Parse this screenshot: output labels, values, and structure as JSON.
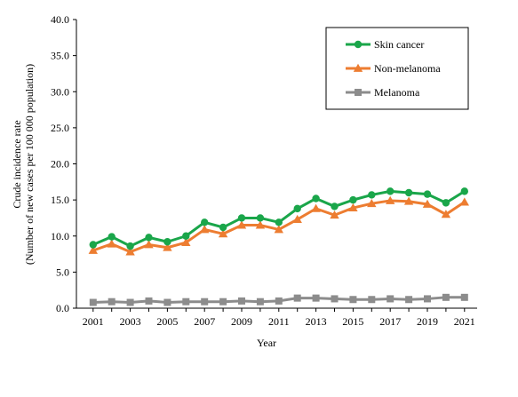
{
  "chart_data": {
    "type": "line",
    "title": "",
    "xlabel": "Year",
    "ylabel_lines": [
      "Crude incidence rate",
      "(Number of new cases per 100 000 population)"
    ],
    "ylim": [
      0,
      40
    ],
    "y_ticks": [
      "0.0",
      "5.0",
      "10.0",
      "15.0",
      "20.0",
      "25.0",
      "30.0",
      "35.0",
      "40.0"
    ],
    "x": [
      2001,
      2002,
      2003,
      2004,
      2005,
      2006,
      2007,
      2008,
      2009,
      2010,
      2011,
      2012,
      2013,
      2014,
      2015,
      2016,
      2017,
      2018,
      2019,
      2020,
      2021
    ],
    "x_tick_labels": [
      "2001",
      "2003",
      "2005",
      "2007",
      "2009",
      "2011",
      "2013",
      "2015",
      "2017",
      "2019",
      "2021"
    ],
    "grid": false,
    "legend_position": "top-right",
    "series": [
      {
        "name": "Skin cancer",
        "color": "#1aa64a",
        "marker": "circle",
        "values": [
          8.8,
          9.9,
          8.6,
          9.8,
          9.2,
          10.0,
          11.9,
          11.2,
          12.5,
          12.5,
          11.9,
          13.8,
          15.2,
          14.1,
          15.0,
          15.7,
          16.2,
          16.0,
          15.8,
          14.6,
          16.2
        ]
      },
      {
        "name": "Non-melanoma",
        "color": "#ed7d31",
        "marker": "triangle",
        "values": [
          8.0,
          8.9,
          7.8,
          8.8,
          8.4,
          9.1,
          10.9,
          10.3,
          11.5,
          11.5,
          10.9,
          12.3,
          13.8,
          12.9,
          13.9,
          14.5,
          14.9,
          14.8,
          14.4,
          13.0,
          14.7
        ]
      },
      {
        "name": "Melanoma",
        "color": "#8c8c8c",
        "marker": "square",
        "values": [
          0.8,
          0.9,
          0.8,
          1.0,
          0.8,
          0.9,
          0.9,
          0.9,
          1.0,
          0.9,
          1.0,
          1.4,
          1.4,
          1.3,
          1.2,
          1.2,
          1.3,
          1.2,
          1.3,
          1.5,
          1.5
        ]
      }
    ]
  }
}
